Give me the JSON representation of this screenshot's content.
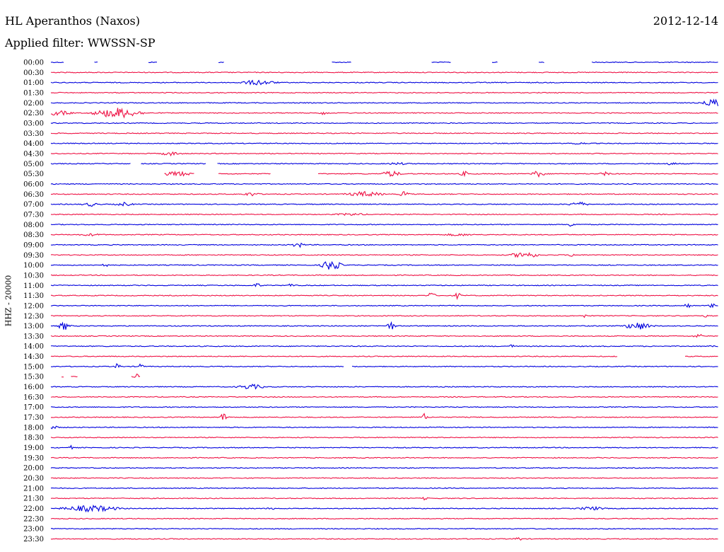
{
  "header": {
    "station": "HL Aperanthos (Naxos)",
    "date": "2012-12-14",
    "filter": "Applied filter: WWSSN-SP",
    "channel": "HHZ - 20000"
  },
  "colors": {
    "blue": "#0000dd",
    "red": "#ee1144"
  },
  "chart_data": {
    "type": "line",
    "title": "HL Aperanthos (Naxos)",
    "ylabel": "HHZ - 20000",
    "rows": [
      {
        "label": "00:00",
        "color": "blue",
        "gaps": [
          [
            0.02,
            0.065
          ],
          [
            0.07,
            0.145
          ],
          [
            0.16,
            0.25
          ],
          [
            0.26,
            0.42
          ],
          [
            0.45,
            0.57
          ],
          [
            0.6,
            0.66
          ],
          [
            0.67,
            0.73
          ],
          [
            0.74,
            0.81
          ]
        ],
        "events": []
      },
      {
        "label": "00:30",
        "color": "red",
        "gaps": [],
        "events": []
      },
      {
        "label": "01:00",
        "color": "blue",
        "gaps": [],
        "events": [
          {
            "pos": 0.31,
            "amp": 4,
            "width": 0.04
          }
        ]
      },
      {
        "label": "01:30",
        "color": "red",
        "gaps": [],
        "events": []
      },
      {
        "label": "02:00",
        "color": "blue",
        "gaps": [],
        "events": [
          {
            "pos": 0.995,
            "amp": 6,
            "width": 0.025
          }
        ]
      },
      {
        "label": "02:30",
        "color": "red",
        "gaps": [],
        "events": [
          {
            "pos": 0.01,
            "amp": 4,
            "width": 0.03
          },
          {
            "pos": 0.1,
            "amp": 8,
            "width": 0.05
          },
          {
            "pos": 0.41,
            "amp": 3,
            "width": 0.012
          }
        ]
      },
      {
        "label": "03:00",
        "color": "blue",
        "gaps": [],
        "events": []
      },
      {
        "label": "03:30",
        "color": "red",
        "gaps": [],
        "events": []
      },
      {
        "label": "04:00",
        "color": "blue",
        "gaps": [],
        "events": [
          {
            "pos": 0.79,
            "amp": 2,
            "width": 0.02
          }
        ]
      },
      {
        "label": "04:30",
        "color": "red",
        "gaps": [],
        "events": [
          {
            "pos": 0.18,
            "amp": 3,
            "width": 0.025
          }
        ]
      },
      {
        "label": "05:00",
        "color": "blue",
        "gaps": [
          [
            0.12,
            0.135
          ],
          [
            0.232,
            0.248
          ]
        ],
        "events": [
          {
            "pos": 0.52,
            "amp": 2,
            "width": 0.03
          },
          {
            "pos": 0.93,
            "amp": 2,
            "width": 0.02
          }
        ]
      },
      {
        "label": "05:30",
        "color": "red",
        "gaps": [
          [
            0.0,
            0.17
          ],
          [
            0.215,
            0.25
          ],
          [
            0.33,
            0.4
          ]
        ],
        "events": [
          {
            "pos": 0.19,
            "amp": 4,
            "width": 0.03
          },
          {
            "pos": 0.51,
            "amp": 5,
            "width": 0.02
          },
          {
            "pos": 0.62,
            "amp": 4,
            "width": 0.01
          },
          {
            "pos": 0.73,
            "amp": 5,
            "width": 0.015
          },
          {
            "pos": 0.83,
            "amp": 4,
            "width": 0.01
          }
        ]
      },
      {
        "label": "06:00",
        "color": "blue",
        "gaps": [],
        "events": []
      },
      {
        "label": "06:30",
        "color": "red",
        "gaps": [],
        "events": [
          {
            "pos": 0.3,
            "amp": 3,
            "width": 0.02
          },
          {
            "pos": 0.47,
            "amp": 4,
            "width": 0.04
          },
          {
            "pos": 0.53,
            "amp": 5,
            "width": 0.01
          }
        ]
      },
      {
        "label": "07:00",
        "color": "blue",
        "gaps": [],
        "events": [
          {
            "pos": 0.06,
            "amp": 3,
            "width": 0.02
          },
          {
            "pos": 0.11,
            "amp": 3,
            "width": 0.02
          },
          {
            "pos": 0.79,
            "amp": 4,
            "width": 0.02
          }
        ]
      },
      {
        "label": "07:30",
        "color": "red",
        "gaps": [],
        "events": [
          {
            "pos": 0.45,
            "amp": 2,
            "width": 0.04
          }
        ]
      },
      {
        "label": "08:00",
        "color": "blue",
        "gaps": [],
        "events": [
          {
            "pos": 0.78,
            "amp": 3,
            "width": 0.015
          }
        ]
      },
      {
        "label": "08:30",
        "color": "red",
        "gaps": [],
        "events": [
          {
            "pos": 0.06,
            "amp": 2,
            "width": 0.03
          },
          {
            "pos": 0.61,
            "amp": 2,
            "width": 0.04
          }
        ]
      },
      {
        "label": "09:00",
        "color": "blue",
        "gaps": [],
        "events": [
          {
            "pos": 0.37,
            "amp": 5,
            "width": 0.012
          }
        ]
      },
      {
        "label": "09:30",
        "color": "red",
        "gaps": [],
        "events": [
          {
            "pos": 0.71,
            "amp": 5,
            "width": 0.03
          },
          {
            "pos": 0.78,
            "amp": 3,
            "width": 0.008
          }
        ]
      },
      {
        "label": "10:00",
        "color": "blue",
        "gaps": [],
        "events": [
          {
            "pos": 0.08,
            "amp": 7,
            "width": 0.006
          },
          {
            "pos": 0.42,
            "amp": 9,
            "width": 0.02
          }
        ]
      },
      {
        "label": "10:30",
        "color": "red",
        "gaps": [],
        "events": []
      },
      {
        "label": "11:00",
        "color": "blue",
        "gaps": [],
        "events": [
          {
            "pos": 0.31,
            "amp": 4,
            "width": 0.008
          },
          {
            "pos": 0.36,
            "amp": 4,
            "width": 0.006
          }
        ]
      },
      {
        "label": "11:30",
        "color": "red",
        "gaps": [],
        "events": [
          {
            "pos": 0.57,
            "amp": 6,
            "width": 0.008
          },
          {
            "pos": 0.61,
            "amp": 6,
            "width": 0.006
          }
        ]
      },
      {
        "label": "12:00",
        "color": "blue",
        "gaps": [],
        "events": [
          {
            "pos": 0.955,
            "amp": 6,
            "width": 0.008
          },
          {
            "pos": 0.99,
            "amp": 5,
            "width": 0.006
          }
        ]
      },
      {
        "label": "12:30",
        "color": "red",
        "gaps": [],
        "events": [
          {
            "pos": 0.8,
            "amp": 3,
            "width": 0.005
          },
          {
            "pos": 0.98,
            "amp": 3,
            "width": 0.005
          }
        ]
      },
      {
        "label": "13:00",
        "color": "blue",
        "gaps": [],
        "events": [
          {
            "pos": 0.02,
            "amp": 7,
            "width": 0.012
          },
          {
            "pos": 0.51,
            "amp": 6,
            "width": 0.01
          },
          {
            "pos": 0.88,
            "amp": 6,
            "width": 0.03
          }
        ]
      },
      {
        "label": "13:30",
        "color": "red",
        "gaps": [],
        "events": [
          {
            "pos": 0.97,
            "amp": 4,
            "width": 0.01
          }
        ]
      },
      {
        "label": "14:00",
        "color": "blue",
        "gaps": [],
        "events": [
          {
            "pos": 0.69,
            "amp": 6,
            "width": 0.004
          },
          {
            "pos": 0.99,
            "amp": 5,
            "width": 0.004
          }
        ]
      },
      {
        "label": "14:30",
        "color": "red",
        "gaps": [
          [
            0.85,
            0.95
          ]
        ],
        "events": []
      },
      {
        "label": "15:00",
        "color": "blue",
        "gaps": [
          [
            0.44,
            0.45
          ]
        ],
        "events": [
          {
            "pos": 0.1,
            "amp": 6,
            "width": 0.006
          },
          {
            "pos": 0.135,
            "amp": 9,
            "width": 0.004
          }
        ]
      },
      {
        "label": "15:30",
        "color": "red",
        "gaps": [
          [
            0.0,
            0.015
          ],
          [
            0.02,
            0.03
          ],
          [
            0.04,
            0.12
          ],
          [
            0.135,
            1.0
          ]
        ],
        "events": [
          {
            "pos": 0.128,
            "amp": 8,
            "width": 0.004
          }
        ]
      },
      {
        "label": "16:00",
        "color": "blue",
        "gaps": [],
        "events": [
          {
            "pos": 0.3,
            "amp": 4,
            "width": 0.03
          }
        ]
      },
      {
        "label": "16:30",
        "color": "red",
        "gaps": [],
        "events": []
      },
      {
        "label": "17:00",
        "color": "blue",
        "gaps": [],
        "events": []
      },
      {
        "label": "17:30",
        "color": "red",
        "gaps": [],
        "events": [
          {
            "pos": 0.26,
            "amp": 8,
            "width": 0.008
          },
          {
            "pos": 0.56,
            "amp": 6,
            "width": 0.006
          }
        ]
      },
      {
        "label": "18:00",
        "color": "blue",
        "gaps": [],
        "events": [
          {
            "pos": 0.005,
            "amp": 3,
            "width": 0.01
          }
        ]
      },
      {
        "label": "18:30",
        "color": "red",
        "gaps": [],
        "events": []
      },
      {
        "label": "19:00",
        "color": "blue",
        "gaps": [],
        "events": [
          {
            "pos": 0.03,
            "amp": 3,
            "width": 0.005
          }
        ]
      },
      {
        "label": "19:30",
        "color": "red",
        "gaps": [],
        "events": []
      },
      {
        "label": "20:00",
        "color": "blue",
        "gaps": [],
        "events": []
      },
      {
        "label": "20:30",
        "color": "red",
        "gaps": [],
        "events": []
      },
      {
        "label": "21:00",
        "color": "blue",
        "gaps": [],
        "events": []
      },
      {
        "label": "21:30",
        "color": "red",
        "gaps": [],
        "events": [
          {
            "pos": 0.56,
            "amp": 3,
            "width": 0.006
          }
        ]
      },
      {
        "label": "22:00",
        "color": "blue",
        "gaps": [],
        "events": [
          {
            "pos": 0.06,
            "amp": 5,
            "width": 0.06
          },
          {
            "pos": 0.33,
            "amp": 2,
            "width": 0.01
          },
          {
            "pos": 0.81,
            "amp": 3,
            "width": 0.03
          }
        ]
      },
      {
        "label": "22:30",
        "color": "red",
        "gaps": [],
        "events": []
      },
      {
        "label": "23:00",
        "color": "blue",
        "gaps": [],
        "events": []
      },
      {
        "label": "23:30",
        "color": "red",
        "gaps": [],
        "events": [
          {
            "pos": 0.7,
            "amp": 3,
            "width": 0.01
          }
        ]
      }
    ]
  }
}
